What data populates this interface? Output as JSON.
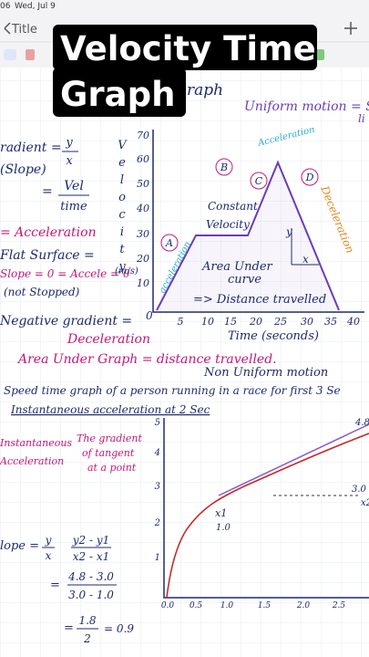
{
  "status_bar": {
    "time": "06",
    "date": "Wed, Jul 9"
  },
  "toolbar": {
    "title": "Title"
  },
  "overlay_title": [
    "Velocity Time",
    "Graph"
  ],
  "graph1": {
    "heading_fragment": "raph",
    "y_label": "Velocity",
    "y_unit": "(m/s)",
    "yticks": [
      "70",
      "60",
      "50",
      "40",
      "30",
      "20",
      "10"
    ],
    "origin": "0",
    "xticks": [
      "5",
      "10",
      "15",
      "20",
      "25",
      "30",
      "35",
      "40"
    ],
    "x_label": "Time (seconds)",
    "points": [
      "A",
      "B",
      "C",
      "D"
    ],
    "labels": {
      "constant": "Constant",
      "velocity": "Velocity",
      "acceleration_up": "Acceleration",
      "acceleration_a": "acceleration",
      "deceleration": "Deceleration",
      "area": "Area Under",
      "curve": "curve",
      "distance": "=> Distance travelled",
      "y": "y",
      "x": "x"
    }
  },
  "notes1": {
    "uniform": "Uniform motion = S",
    "uniform_cont": "li",
    "gradient": "radient =",
    "gradient_frac": [
      "y",
      "x"
    ],
    "slope": "(Slope)",
    "vel_frac": [
      "Vel",
      "time"
    ],
    "equals": "=",
    "acceleration": "= Acceleration",
    "flat": "Flat Surface =",
    "slope_zero": "Slope = 0 = Accele = 0",
    "not_stopped": "(not Stopped)",
    "negative": "Negative gradient =",
    "deceleration": "Deceleration",
    "area": "Area Under Graph = distance travelled.",
    "non_uniform": "Non Uniform motion"
  },
  "notes2": {
    "speed": "Speed time graph of a person running in a race for first 3 Se",
    "instant": "Instantaneous acceleration at 2 Sec",
    "inst_left": [
      "Instantaneous",
      "Acceleration"
    ],
    "gradient_def": [
      "The gradient",
      "of tangent",
      "at a point"
    ]
  },
  "graph2": {
    "yticks": [
      "5",
      "4",
      "3",
      "2",
      "1"
    ],
    "xticks": [
      "0.0",
      "0.5",
      "1.0",
      "1.5",
      "2.0",
      "2.5"
    ],
    "y2": "4.8",
    "y1": "3.0",
    "x2": "x2",
    "x1": "x1",
    "x1_value": "1.0"
  },
  "formula": {
    "slope": "lope =",
    "frac1": [
      "y",
      "x"
    ],
    "frac2": [
      "y2 - y1",
      "x2 - x1"
    ],
    "frac3": [
      "4.8 - 3.0",
      "3.0 - 1.0"
    ],
    "frac4": [
      "1.8",
      "2"
    ],
    "result": "= 0.9"
  }
}
